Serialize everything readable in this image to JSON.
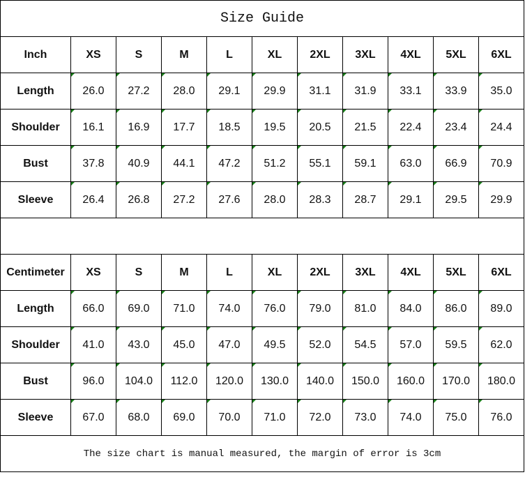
{
  "title": "Size Guide",
  "sizes": [
    "XS",
    "S",
    "M",
    "L",
    "XL",
    "2XL",
    "3XL",
    "4XL",
    "5XL",
    "6XL"
  ],
  "inch": {
    "unit_label": "Inch",
    "rows": [
      {
        "label": "Length",
        "values": [
          "26.0",
          "27.2",
          "28.0",
          "29.1",
          "29.9",
          "31.1",
          "31.9",
          "33.1",
          "33.9",
          "35.0"
        ]
      },
      {
        "label": "Shoulder",
        "values": [
          "16.1",
          "16.9",
          "17.7",
          "18.5",
          "19.5",
          "20.5",
          "21.5",
          "22.4",
          "23.4",
          "24.4"
        ]
      },
      {
        "label": "Bust",
        "values": [
          "37.8",
          "40.9",
          "44.1",
          "47.2",
          "51.2",
          "55.1",
          "59.1",
          "63.0",
          "66.9",
          "70.9"
        ]
      },
      {
        "label": "Sleeve",
        "values": [
          "26.4",
          "26.8",
          "27.2",
          "27.6",
          "28.0",
          "28.3",
          "28.7",
          "29.1",
          "29.5",
          "29.9"
        ]
      }
    ]
  },
  "cm": {
    "unit_label": "Centimeter",
    "rows": [
      {
        "label": "Length",
        "values": [
          "66.0",
          "69.0",
          "71.0",
          "74.0",
          "76.0",
          "79.0",
          "81.0",
          "84.0",
          "86.0",
          "89.0"
        ]
      },
      {
        "label": "Shoulder",
        "values": [
          "41.0",
          "43.0",
          "45.0",
          "47.0",
          "49.5",
          "52.0",
          "54.5",
          "57.0",
          "59.5",
          "62.0"
        ]
      },
      {
        "label": "Bust",
        "values": [
          "96.0",
          "104.0",
          "112.0",
          "120.0",
          "130.0",
          "140.0",
          "150.0",
          "160.0",
          "170.0",
          "180.0"
        ]
      },
      {
        "label": "Sleeve",
        "values": [
          "67.0",
          "68.0",
          "69.0",
          "70.0",
          "71.0",
          "72.0",
          "73.0",
          "74.0",
          "75.0",
          "76.0"
        ]
      }
    ]
  },
  "footer": "The size chart is manual measured, the margin of error is 3cm",
  "colors": {
    "marker": "#1a7f1a",
    "border": "#000000"
  }
}
